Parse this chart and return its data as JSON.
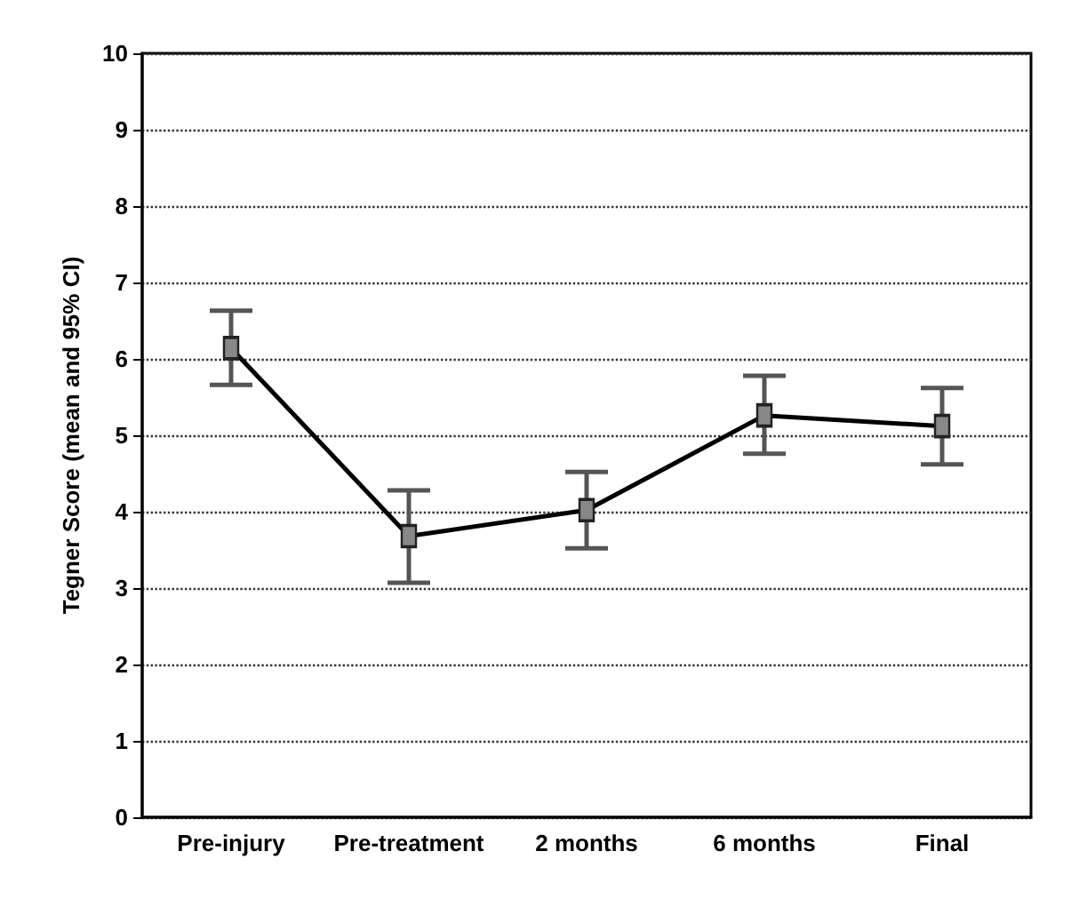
{
  "chart_data": {
    "type": "line",
    "ylabel": "Tegner Score (mean and 95% CI)",
    "categories": [
      "Pre-injury",
      "Pre-treatment",
      "2 months",
      "6 months",
      "Final"
    ],
    "series": [
      {
        "color": "#000000",
        "values": [
          6.14,
          3.68,
          4.02,
          5.26,
          5.12
        ],
        "errors": [
          [
            5.66,
            6.63
          ],
          [
            3.07,
            4.28
          ],
          [
            3.52,
            4.52
          ],
          [
            4.76,
            5.78
          ],
          [
            4.62,
            5.62
          ]
        ]
      }
    ],
    "ylim": [
      0,
      10
    ],
    "yticks": [
      0,
      1,
      2,
      3,
      4,
      5,
      6,
      7,
      8,
      9,
      10
    ],
    "grid": "y",
    "marker": "square",
    "line_style": "solid"
  }
}
